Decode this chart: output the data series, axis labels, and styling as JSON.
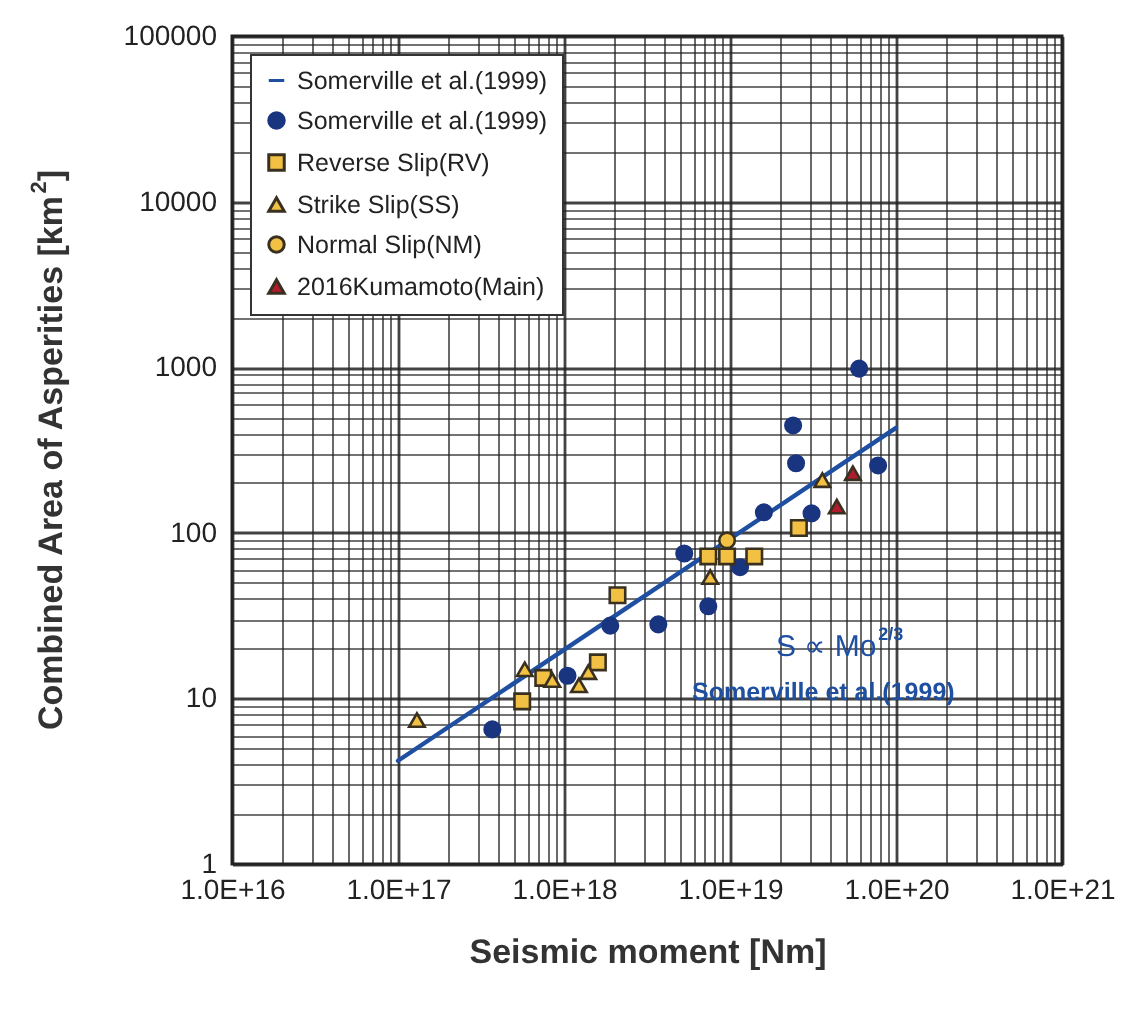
{
  "chart_data": {
    "type": "scatter",
    "xlabel": "Seismic moment [Nm]",
    "ylabel": "Combined Area of Asperities [km$^{2}$]",
    "log": "xy",
    "grid": true,
    "legend": "top left",
    "xlim": [
      1e+16,
      1e+21
    ],
    "ylim": [
      1,
      100000
    ],
    "xticks": [
      {
        "value": 1e+16,
        "label": "1.0E+16"
      },
      {
        "value": 1e+17,
        "label": "1.0E+17"
      },
      {
        "value": 1e+18,
        "label": "1.0E+18"
      },
      {
        "value": 1e+19,
        "label": "1.0E+19"
      },
      {
        "value": 1e+20,
        "label": "1.0E+20"
      },
      {
        "value": 1e+21,
        "label": "1.0E+21"
      }
    ],
    "yticks": [
      1,
      10,
      100,
      1000,
      10000,
      100000
    ],
    "annotations": [
      "S ∝ Mo$^{2/3}$",
      "Somerville et al.(1999)"
    ],
    "series": [
      {
        "name": "Somerville et al.(1999)",
        "type": "line",
        "color": "#1f4fa0",
        "marker": "none",
        "x": [
          1e+17,
          1e+20
        ],
        "values": [
          4.2,
          430
        ]
      },
      {
        "name": "Somerville et al.(1999)",
        "type": "scatter",
        "color": "#1a3580",
        "marker": "circle",
        "x": [
          3.7e+17,
          1.05e+18,
          1.9e+18,
          3.7e+18,
          5.3e+18,
          7.4e+18,
          1.15e+19,
          1.6e+19,
          2.4e+19,
          2.5e+19,
          3.1e+19,
          6e+19,
          7.8e+19
        ],
        "values": [
          6.5,
          13.7,
          27.5,
          28,
          75,
          36,
          62,
          133,
          445,
          263,
          131,
          980,
          255
        ]
      },
      {
        "name": "Reverse Slip(RV)",
        "type": "scatter",
        "color": "#f2c043",
        "marker": "square",
        "x": [
          2.1e+18,
          5.6e+17,
          7.5e+17,
          1.6e+18,
          7.4e+18,
          9.6e+18,
          1.4e+19,
          2.6e+19
        ],
        "values": [
          42,
          9.6,
          13.3,
          16.5,
          72,
          72,
          72,
          107
        ]
      },
      {
        "name": "Strike Slip(SS)",
        "type": "scatter",
        "color": "#f2c043",
        "marker": "triangle",
        "x": [
          1.3e+17,
          5.8e+17,
          8.5e+17,
          1.23e+18,
          1.4e+18,
          7.6e+18,
          3.6e+19
        ],
        "values": [
          7.4,
          15,
          12.9,
          12,
          14.4,
          54,
          208
        ]
      },
      {
        "name": "Normal Slip(NM)",
        "type": "scatter",
        "color": "#f2c043",
        "marker": "circle",
        "x": [
          9.6e+18
        ],
        "values": [
          90
        ]
      },
      {
        "name": "2016Kumamoto(Main)",
        "type": "scatter",
        "color": "#b01c2e",
        "marker": "triangle",
        "x": [
          4.4e+19,
          5.5e+19
        ],
        "values": [
          144,
          229
        ]
      }
    ]
  }
}
